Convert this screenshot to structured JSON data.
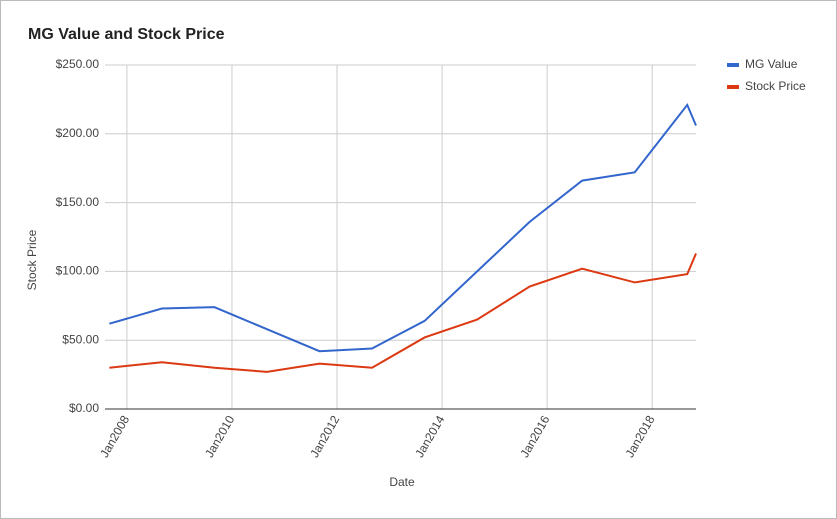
{
  "chart_data": {
    "type": "line",
    "title": "MG Value and Stock Price",
    "x_label": "Date",
    "y_label": "Stock Price",
    "x": [
      "2007-09",
      "2008-09",
      "2009-09",
      "2010-09",
      "2011-09",
      "2012-09",
      "2013-09",
      "2014-09",
      "2015-09",
      "2016-09",
      "2017-09",
      "2018-09",
      "2018-11"
    ],
    "series": [
      {
        "name": "MG Value",
        "color": "#3366cc",
        "values": [
          62,
          73,
          74,
          58,
          42,
          44,
          64,
          100,
          136,
          166,
          172,
          221,
          206
        ]
      },
      {
        "name": "Stock Price",
        "color": "#dc3912",
        "values": [
          30,
          34,
          30,
          27,
          33,
          30,
          52,
          65,
          89,
          102,
          92,
          98,
          113
        ]
      }
    ],
    "xlim": [
      "2007-08",
      "2018-11"
    ],
    "xticks": [
      {
        "value": "2008-01",
        "label": "Jan2008"
      },
      {
        "value": "2010-01",
        "label": "Jan2010"
      },
      {
        "value": "2012-01",
        "label": "Jan2012"
      },
      {
        "value": "2014-01",
        "label": "Jan2014"
      },
      {
        "value": "2016-01",
        "label": "Jan2016"
      },
      {
        "value": "2018-01",
        "label": "Jan2018"
      }
    ],
    "ylim": [
      0,
      250
    ],
    "yticks": [
      {
        "value": 0,
        "label": "$0.00"
      },
      {
        "value": 50,
        "label": "$50.00"
      },
      {
        "value": 100,
        "label": "$100.00"
      },
      {
        "value": 150,
        "label": "$150.00"
      },
      {
        "value": 200,
        "label": "$200.00"
      },
      {
        "value": 250,
        "label": "$250.00"
      }
    ],
    "grid": true,
    "legend": "right"
  }
}
